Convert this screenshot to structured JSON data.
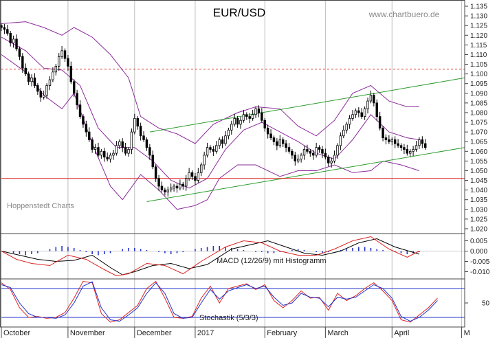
{
  "chart_data": [
    {
      "type": "candlestick",
      "title": "EUR/USD",
      "watermark": "www.chartbuero.de",
      "annotation": "Hoppenstedt Charts",
      "y_ticks": [
        "1.135",
        "1.130",
        "1.125",
        "1.120",
        "1.115",
        "1.110",
        "1.105",
        "1.100",
        "1.095",
        "1.090",
        "1.085",
        "1.080",
        "1.075",
        "1.070",
        "1.065",
        "1.060",
        "1.055",
        "1.050",
        "1.045",
        "1.040",
        "1.035",
        "1.030",
        "1.025",
        "1.020"
      ],
      "ylim": [
        1.0175,
        1.1375
      ],
      "x_labels": [
        "October",
        "November",
        "December",
        "2017",
        "February",
        "March",
        "April",
        "M"
      ],
      "x_label_positions": [
        0,
        22,
        44,
        64,
        87,
        107,
        129,
        152
      ],
      "x_range": [
        0,
        153
      ],
      "price_closes": [
        1.124,
        1.123,
        1.121,
        1.116,
        1.118,
        1.113,
        1.109,
        1.103,
        1.1,
        1.096,
        1.098,
        1.094,
        1.091,
        1.088,
        1.089,
        1.094,
        1.097,
        1.101,
        1.104,
        1.109,
        1.112,
        1.108,
        1.104,
        1.096,
        1.09,
        1.084,
        1.078,
        1.074,
        1.07,
        1.066,
        1.061,
        1.062,
        1.058,
        1.06,
        1.057,
        1.056,
        1.058,
        1.059,
        1.063,
        1.065,
        1.062,
        1.059,
        1.061,
        1.07,
        1.077,
        1.073,
        1.068,
        1.066,
        1.062,
        1.058,
        1.052,
        1.046,
        1.042,
        1.04,
        1.039,
        1.04,
        1.041,
        1.042,
        1.041,
        1.043,
        1.042,
        1.046,
        1.049,
        1.047,
        1.045,
        1.049,
        1.053,
        1.058,
        1.062,
        1.061,
        1.06,
        1.063,
        1.066,
        1.064,
        1.068,
        1.071,
        1.074,
        1.077,
        1.074,
        1.076,
        1.079,
        1.078,
        1.077,
        1.079,
        1.082,
        1.08,
        1.076,
        1.072,
        1.069,
        1.067,
        1.065,
        1.063,
        1.066,
        1.064,
        1.062,
        1.06,
        1.058,
        1.055,
        1.056,
        1.058,
        1.061,
        1.06,
        1.059,
        1.058,
        1.062,
        1.061,
        1.059,
        1.057,
        1.054,
        1.055,
        1.058,
        1.063,
        1.068,
        1.071,
        1.074,
        1.077,
        1.079,
        1.081,
        1.08,
        1.078,
        1.082,
        1.086,
        1.089,
        1.085,
        1.078,
        1.072,
        1.067,
        1.066,
        1.065,
        1.066,
        1.064,
        1.063,
        1.062,
        1.061,
        1.059,
        1.06,
        1.061,
        1.063,
        1.066,
        1.064,
        1.062
      ],
      "overlays": [
        {
          "name": "upper-bollinger",
          "color": "#8a2a9a",
          "x": [
            0,
            8,
            14,
            20,
            24,
            30,
            36,
            42,
            46,
            52,
            58,
            64,
            70,
            78,
            84,
            92,
            98,
            104,
            110,
            116,
            122,
            128,
            134,
            138
          ],
          "y": [
            1.126,
            1.127,
            1.124,
            1.12,
            1.124,
            1.119,
            1.11,
            1.098,
            1.078,
            1.072,
            1.069,
            1.064,
            1.074,
            1.08,
            1.083,
            1.082,
            1.073,
            1.068,
            1.076,
            1.09,
            1.094,
            1.086,
            1.083,
            1.083
          ]
        },
        {
          "name": "lower-bollinger",
          "color": "#8a2a9a",
          "x": [
            0,
            8,
            14,
            20,
            24,
            30,
            36,
            40,
            46,
            52,
            58,
            64,
            68,
            72,
            78,
            84,
            92,
            98,
            104,
            110,
            116,
            122,
            126,
            132,
            138
          ],
          "y": [
            1.11,
            1.101,
            1.089,
            1.082,
            1.09,
            1.064,
            1.042,
            1.035,
            1.048,
            1.04,
            1.03,
            1.032,
            1.035,
            1.046,
            1.053,
            1.053,
            1.047,
            1.05,
            1.05,
            1.053,
            1.049,
            1.05,
            1.055,
            1.053,
            1.05
          ]
        },
        {
          "name": "moving-average",
          "color": "#8a2a9a",
          "x": [
            0,
            8,
            14,
            20,
            26,
            32,
            38,
            44,
            50,
            56,
            62,
            68,
            74,
            80,
            86,
            92,
            98,
            104,
            110,
            116,
            122,
            128,
            134,
            138
          ],
          "y": [
            1.119,
            1.112,
            1.103,
            1.102,
            1.094,
            1.072,
            1.062,
            1.062,
            1.055,
            1.045,
            1.041,
            1.046,
            1.061,
            1.071,
            1.075,
            1.07,
            1.065,
            1.059,
            1.056,
            1.066,
            1.079,
            1.07,
            1.067,
            1.066
          ]
        },
        {
          "name": "upper-trend-channel",
          "color": "#2a9a2a",
          "x": [
            49,
            153
          ],
          "y": [
            1.07,
            1.098
          ]
        },
        {
          "name": "lower-trend-channel",
          "color": "#2a9a2a",
          "x": [
            48,
            153
          ],
          "y": [
            1.034,
            1.062
          ]
        },
        {
          "name": "support-line",
          "color": "#dd2222",
          "x": [
            0,
            153
          ],
          "y": [
            1.046,
            1.046
          ]
        },
        {
          "name": "resistance-line",
          "color": "#dd2222",
          "dashed": true,
          "x": [
            0,
            153
          ],
          "y": [
            1.1025,
            1.1025
          ]
        }
      ]
    },
    {
      "type": "line",
      "title": "MACD (12/26/9) mit Histogramm",
      "y_ticks": [
        "0.005",
        "0.000",
        "-0.005",
        "-0.010"
      ],
      "ylim": [
        -0.0135,
        0.0085
      ],
      "x_range": [
        0,
        153
      ],
      "series": [
        {
          "name": "",
          "color": "#000000",
          "x": [
            0,
            6,
            12,
            18,
            24,
            30,
            36,
            40,
            44,
            50,
            56,
            62,
            68,
            76,
            82,
            88,
            94,
            100,
            106,
            112,
            118,
            124,
            130,
            138
          ],
          "y": [
            0.0,
            -0.002,
            -0.004,
            -0.005,
            -0.0045,
            -0.002,
            -0.008,
            -0.0115,
            -0.01,
            -0.007,
            -0.006,
            -0.0085,
            -0.0065,
            0.001,
            0.003,
            0.005,
            0.002,
            -0.001,
            -0.002,
            0.0,
            0.004,
            0.006,
            0.002,
            -0.0015
          ]
        },
        {
          "name": "",
          "color": "#dd2222",
          "x": [
            0,
            5,
            10,
            16,
            22,
            28,
            34,
            38,
            42,
            48,
            54,
            60,
            66,
            74,
            80,
            86,
            92,
            98,
            104,
            110,
            116,
            122,
            128,
            134,
            138
          ],
          "y": [
            0.0,
            -0.004,
            -0.006,
            -0.007,
            -0.002,
            -0.004,
            -0.009,
            -0.012,
            -0.011,
            -0.006,
            -0.007,
            -0.011,
            -0.005,
            0.002,
            0.005,
            0.004,
            0.0,
            -0.002,
            -0.002,
            0.001,
            0.005,
            0.007,
            0.001,
            -0.003,
            0.0
          ]
        }
      ],
      "histogram": {
        "color": "#2233cc",
        "x": [
          4,
          6,
          8,
          10,
          12,
          14,
          16,
          18,
          20,
          22,
          24,
          26,
          28,
          30,
          32,
          34,
          36,
          38,
          40,
          42,
          44,
          46,
          48,
          50,
          52,
          54,
          56,
          58,
          60,
          62,
          64,
          66,
          68,
          70,
          72,
          74,
          76,
          78,
          80,
          82,
          84,
          86,
          88,
          90,
          92,
          94,
          96,
          98,
          100,
          102,
          104,
          106,
          108,
          110,
          112,
          114,
          116,
          118,
          120,
          122,
          124,
          126,
          128,
          130,
          132,
          134,
          136,
          138
        ],
        "y": [
          -0.001,
          -0.0015,
          -0.002,
          -0.0015,
          -0.001,
          0.0,
          0.001,
          0.002,
          0.0025,
          0.002,
          0.0015,
          0.0005,
          -0.0005,
          -0.0015,
          -0.002,
          -0.0015,
          -0.001,
          0.0,
          0.001,
          0.0015,
          0.0015,
          0.001,
          0.0005,
          0.0,
          -0.0005,
          -0.001,
          -0.0015,
          -0.001,
          -0.0005,
          0.0,
          0.001,
          0.0015,
          0.002,
          0.0025,
          0.0025,
          0.002,
          0.0015,
          0.001,
          0.0005,
          0.0,
          -0.0005,
          -0.0005,
          -0.001,
          -0.001,
          -0.0005,
          0.0,
          0.0005,
          0.001,
          0.0005,
          0.0,
          -0.0005,
          -0.001,
          -0.0005,
          0.0,
          0.0005,
          0.001,
          0.0015,
          0.002,
          0.002,
          0.0015,
          0.001,
          0.0005,
          0.0,
          -0.0005,
          -0.001,
          -0.0015,
          -0.001,
          -0.0005
        ]
      }
    },
    {
      "type": "line",
      "title": "Stochastik (5/3/3)",
      "y_ticks": [
        "50"
      ],
      "ylim": [
        0,
        100
      ],
      "ref_lines": [
        80,
        20
      ],
      "x_range": [
        0,
        153
      ],
      "series": [
        {
          "name": "",
          "color": "#dd2222",
          "x": [
            0,
            3,
            6,
            9,
            12,
            15,
            18,
            21,
            24,
            27,
            30,
            33,
            36,
            39,
            42,
            45,
            48,
            51,
            54,
            57,
            60,
            63,
            66,
            69,
            72,
            75,
            78,
            81,
            84,
            87,
            90,
            93,
            96,
            99,
            102,
            105,
            108,
            111,
            114,
            117,
            120,
            123,
            126,
            129,
            132,
            135,
            138,
            141,
            144
          ],
          "y": [
            92,
            78,
            40,
            20,
            22,
            18,
            20,
            30,
            60,
            95,
            92,
            28,
            10,
            15,
            30,
            45,
            80,
            95,
            60,
            20,
            18,
            22,
            60,
            85,
            50,
            80,
            85,
            90,
            78,
            88,
            55,
            40,
            55,
            75,
            60,
            62,
            35,
            70,
            55,
            65,
            80,
            92,
            75,
            55,
            15,
            10,
            25,
            40,
            60
          ]
        },
        {
          "name": "",
          "color": "#2233cc",
          "x": [
            0,
            3,
            6,
            9,
            12,
            15,
            18,
            21,
            24,
            27,
            30,
            33,
            36,
            39,
            42,
            45,
            48,
            51,
            54,
            57,
            60,
            63,
            66,
            69,
            72,
            75,
            78,
            81,
            84,
            87,
            90,
            93,
            96,
            99,
            102,
            105,
            108,
            111,
            114,
            117,
            120,
            123,
            126,
            129,
            132,
            135,
            138,
            141,
            144
          ],
          "y": [
            88,
            82,
            50,
            28,
            20,
            20,
            18,
            25,
            50,
            85,
            94,
            40,
            15,
            12,
            25,
            40,
            70,
            92,
            70,
            28,
            18,
            20,
            50,
            78,
            58,
            75,
            82,
            88,
            80,
            85,
            62,
            45,
            50,
            70,
            62,
            60,
            42,
            62,
            58,
            62,
            75,
            88,
            80,
            60,
            22,
            12,
            20,
            35,
            55
          ]
        }
      ]
    }
  ]
}
